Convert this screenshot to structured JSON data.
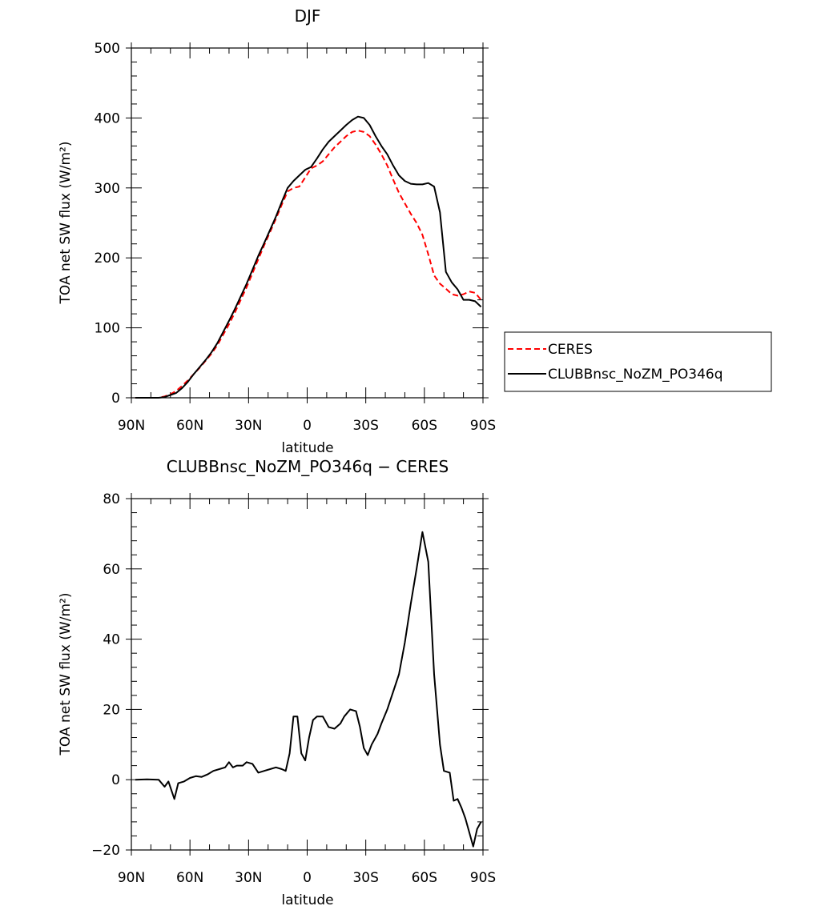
{
  "chart_data": [
    {
      "type": "line",
      "title": "DJF",
      "xlabel": "latitude",
      "ylabel": "TOA net SW flux (W/m²)",
      "xlim": [
        -90,
        90
      ],
      "ylim": [
        0,
        500
      ],
      "x_tick_values": [
        -90,
        -60,
        -30,
        0,
        30,
        60,
        90
      ],
      "x_tick_labels": [
        "90N",
        "60N",
        "30N",
        "0",
        "30S",
        "60S",
        "90S"
      ],
      "y_ticks": [
        0,
        100,
        200,
        300,
        400,
        500
      ],
      "grid": false,
      "legend_position": "right-outside",
      "series": [
        {
          "name": "CERES",
          "color": "#ff0000",
          "dash": true,
          "x": [
            -88,
            -85,
            -82,
            -79,
            -76,
            -73,
            -70,
            -67,
            -64,
            -61,
            -58,
            -55,
            -52,
            -49,
            -46,
            -43,
            -40,
            -37,
            -34,
            -31,
            -28,
            -25,
            -22,
            -19,
            -16,
            -13,
            -10,
            -7,
            -4,
            -1,
            2,
            5,
            8,
            11,
            14,
            17,
            20,
            23,
            26,
            29,
            32,
            35,
            38,
            41,
            44,
            47,
            50,
            53,
            56,
            59,
            62,
            65,
            68,
            71,
            74,
            77,
            80,
            83,
            86,
            89
          ],
          "y": [
            0,
            0,
            0,
            0,
            0,
            2,
            5,
            10,
            17,
            25,
            34,
            43,
            53,
            63,
            75,
            90,
            105,
            122,
            140,
            158,
            178,
            198,
            218,
            237,
            256,
            276,
            295,
            300,
            302,
            315,
            328,
            332,
            338,
            348,
            358,
            366,
            374,
            380,
            382,
            380,
            374,
            362,
            348,
            332,
            312,
            293,
            278,
            263,
            250,
            233,
            205,
            175,
            163,
            156,
            148,
            146,
            148,
            152,
            150,
            140
          ]
        },
        {
          "name": "CLUBBnsc_NoZM_PO346q",
          "color": "#000000",
          "dash": false,
          "x": [
            -88,
            -85,
            -82,
            -79,
            -76,
            -73,
            -70,
            -67,
            -64,
            -61,
            -58,
            -55,
            -52,
            -49,
            -46,
            -43,
            -40,
            -37,
            -34,
            -31,
            -28,
            -25,
            -22,
            -19,
            -16,
            -13,
            -10,
            -7,
            -4,
            -1,
            2,
            5,
            8,
            11,
            14,
            17,
            20,
            23,
            26,
            29,
            32,
            35,
            38,
            41,
            44,
            47,
            50,
            53,
            56,
            59,
            62,
            65,
            68,
            71,
            74,
            77,
            80,
            83,
            86,
            89
          ],
          "y": [
            0,
            0,
            0,
            0,
            0,
            1,
            4,
            7,
            14,
            23,
            34,
            44,
            54,
            65,
            78,
            94,
            110,
            127,
            145,
            163,
            183,
            203,
            221,
            240,
            259,
            280,
            300,
            310,
            318,
            326,
            330,
            342,
            355,
            366,
            374,
            382,
            390,
            397,
            402,
            400,
            390,
            374,
            360,
            348,
            332,
            318,
            310,
            306,
            305,
            305,
            307,
            302,
            265,
            180,
            165,
            155,
            140,
            140,
            138,
            130
          ]
        }
      ]
    },
    {
      "type": "line",
      "title": "CLUBBnsc_NoZM_PO346q − CERES",
      "xlabel": "latitude",
      "ylabel": "TOA net SW flux (W/m²)",
      "xlim": [
        -90,
        90
      ],
      "ylim": [
        -20,
        80
      ],
      "x_tick_values": [
        -90,
        -60,
        -30,
        0,
        30,
        60,
        90
      ],
      "x_tick_labels": [
        "90N",
        "60N",
        "30N",
        "0",
        "30S",
        "60S",
        "90S"
      ],
      "y_ticks": [
        -20,
        0,
        20,
        40,
        60,
        80
      ],
      "grid": false,
      "series": [
        {
          "color": "#000000",
          "dash": false,
          "x": [
            -88,
            -82,
            -76,
            -73,
            -71,
            -68,
            -66,
            -63,
            -60,
            -57,
            -54,
            -51,
            -48,
            -45,
            -42,
            -40,
            -38,
            -36,
            -33,
            -31,
            -28,
            -25,
            -22,
            -19,
            -16,
            -13,
            -11,
            -9,
            -7,
            -5,
            -3,
            -1,
            1,
            3,
            5,
            8,
            11,
            14,
            17,
            19,
            22,
            25,
            27,
            29,
            31,
            33,
            36,
            38,
            41,
            44,
            47,
            50,
            53,
            56,
            59,
            62,
            65,
            68,
            70,
            73,
            75,
            77,
            79,
            81,
            83,
            85,
            87,
            89
          ],
          "y": [
            0,
            0.1,
            0,
            -2,
            -0.5,
            -5.5,
            -1,
            -0.5,
            0.5,
            1,
            0.8,
            1.5,
            2.5,
            3,
            3.5,
            5,
            3.5,
            4,
            4,
            5,
            4.5,
            2,
            2.5,
            3,
            3.5,
            3,
            2.5,
            7.5,
            18,
            18,
            7.5,
            5.5,
            12,
            17,
            18,
            18,
            15,
            14.5,
            16,
            18,
            20,
            19.5,
            15,
            9,
            7,
            10,
            13,
            16,
            20,
            25,
            30,
            39,
            50,
            60,
            70.5,
            62,
            30,
            10,
            2.5,
            2,
            -6,
            -5.5,
            -8,
            -11,
            -15,
            -19,
            -14,
            -12
          ]
        }
      ]
    }
  ]
}
